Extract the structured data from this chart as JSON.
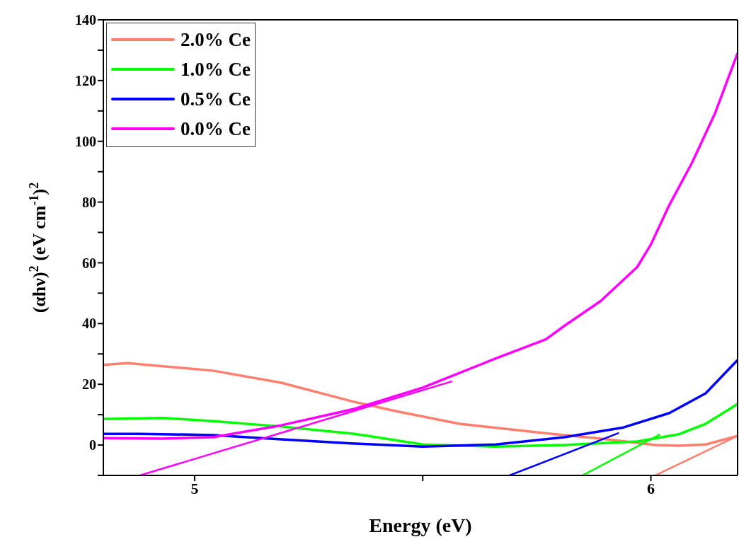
{
  "chart_data": {
    "type": "line",
    "xlabel": "Energy (eV)",
    "ylabel": "(αhν)$^{2}$ (eV cm$^{-1}$)$^{2}$",
    "xlim": [
      4.8,
      6.19
    ],
    "xticks": [
      5,
      {
        "value": 5.5,
        "label": null
      },
      6
    ],
    "ylim": [
      -10,
      140
    ],
    "yticks": [
      {
        "value": -10,
        "label": null
      },
      0,
      {
        "value": 10,
        "label": null
      },
      20,
      {
        "value": 30,
        "label": null
      },
      40,
      {
        "value": 50,
        "label": null
      },
      60,
      {
        "value": 70,
        "label": null
      },
      80,
      {
        "value": 90,
        "label": null
      },
      100,
      {
        "value": 110,
        "label": null
      },
      120,
      {
        "value": 130,
        "label": null
      },
      140
    ],
    "legend": "top left",
    "marker": "none",
    "line_style": "solid",
    "series": [
      {
        "name": "2.0% Ce",
        "color": "#ff7f6e",
        "x": [
          4.8,
          4.853,
          5.04,
          5.19,
          5.35,
          5.44,
          5.58,
          5.75,
          5.89,
          6.01,
          6.06,
          6.12,
          6.19
        ],
        "values": [
          26.4,
          27,
          24.5,
          20.5,
          14.2,
          11.2,
          7,
          4.2,
          2.1,
          0,
          -0.2,
          0.2,
          3
        ]
      },
      {
        "name": "1.0% Ce",
        "color": "#00ff00",
        "x": [
          4.8,
          4.93,
          5.04,
          5.19,
          5.35,
          5.5,
          5.66,
          5.81,
          5.97,
          6.06,
          6.12,
          6.19
        ],
        "values": [
          8.6,
          8.9,
          7.9,
          6.1,
          3.7,
          0.2,
          -0.5,
          0,
          1.2,
          3.5,
          7,
          13.5
        ]
      },
      {
        "name": "0.5% Ce",
        "color": "#0000ff",
        "x": [
          4.8,
          4.88,
          5.04,
          5.19,
          5.35,
          5.5,
          5.66,
          5.81,
          5.94,
          6.04,
          6.12,
          6.19
        ],
        "values": [
          3.7,
          3.7,
          3.3,
          1.9,
          0.5,
          -0.5,
          0.2,
          2.6,
          5.8,
          10.5,
          17,
          28
        ]
      },
      {
        "name": "0.0% Ce",
        "color": "#ff00ff",
        "x": [
          4.8,
          4.93,
          5.04,
          5.19,
          5.35,
          5.5,
          5.66,
          5.77,
          5.81,
          5.89,
          5.97,
          6,
          6.04,
          6.09,
          6.14,
          6.19
        ],
        "values": [
          2.3,
          2.1,
          2.6,
          6.5,
          11.9,
          18.9,
          28.5,
          34.8,
          39.2,
          47.4,
          58.6,
          66,
          78.9,
          92.9,
          109,
          129
        ]
      },
      {
        "type": "line",
        "color": "#ff7f6e",
        "x": [
          6.01,
          6.19
        ],
        "values": [
          -10,
          3
        ]
      },
      {
        "type": "line",
        "color": "#00ff00",
        "x": [
          5.85,
          6.02
        ],
        "values": [
          -10,
          3.5
        ]
      },
      {
        "type": "line",
        "color": "#0000ff",
        "x": [
          5.69,
          5.93
        ],
        "values": [
          -10,
          4
        ]
      },
      {
        "type": "line",
        "color": "#ff00ff",
        "x": [
          4.88,
          5.565
        ],
        "values": [
          -10,
          21
        ]
      }
    ]
  }
}
